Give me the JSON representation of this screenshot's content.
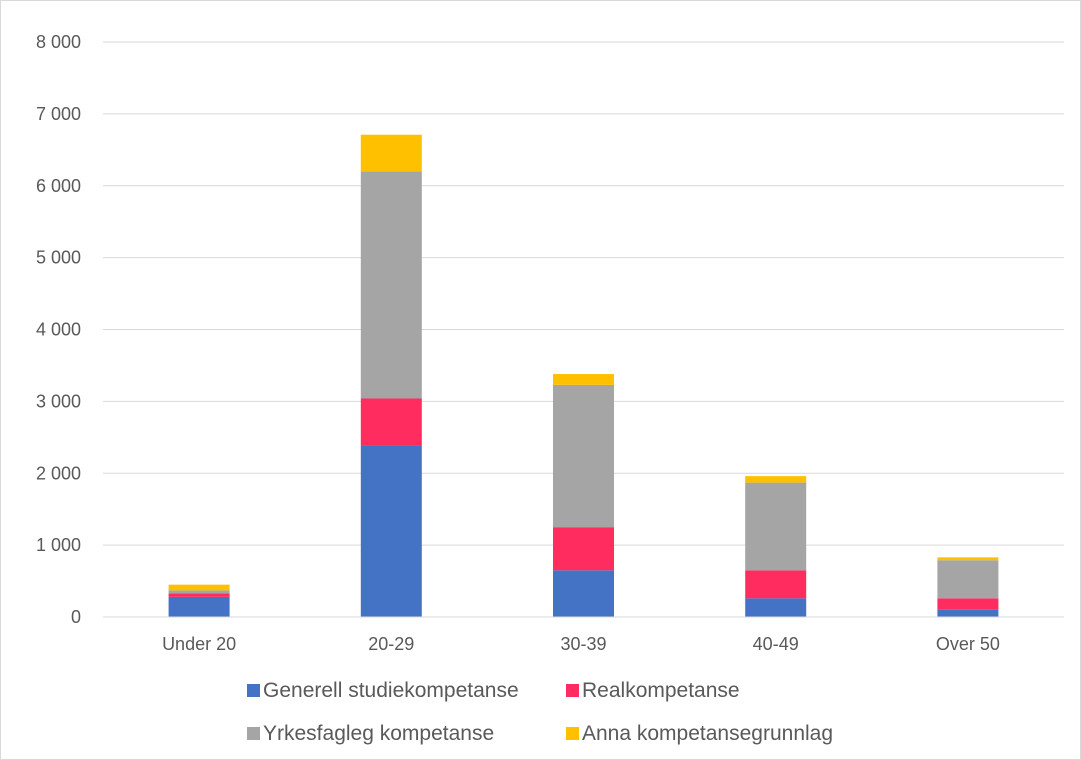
{
  "chart_data": {
    "type": "bar",
    "stacked": true,
    "title": "",
    "xlabel": "",
    "ylabel": "",
    "categories": [
      "Under 20",
      "20-29",
      "30-39",
      "40-49",
      "Over 50"
    ],
    "series": [
      {
        "name": "Generell studiekompetanse",
        "color": "#4472c4",
        "values": [
          280,
          2380,
          650,
          260,
          100
        ]
      },
      {
        "name": "Realkompetanse",
        "color": "#ff2d5f",
        "values": [
          50,
          660,
          600,
          390,
          160
        ]
      },
      {
        "name": "Yrkesfagleg kompetanse",
        "color": "#a5a5a5",
        "values": [
          40,
          3160,
          1980,
          1220,
          530
        ]
      },
      {
        "name": "Anna kompetansegrunnlag",
        "color": "#ffc000",
        "values": [
          80,
          510,
          150,
          90,
          40
        ]
      }
    ],
    "ylim": [
      0,
      8000
    ],
    "yticks": [
      0,
      1000,
      2000,
      3000,
      4000,
      5000,
      6000,
      7000,
      8000
    ],
    "ytick_labels": [
      "0",
      "1 000",
      "2 000",
      "3 000",
      "4 000",
      "5 000",
      "6 000",
      "7 000",
      "8 000"
    ],
    "grid": true,
    "legend_position": "bottom"
  }
}
